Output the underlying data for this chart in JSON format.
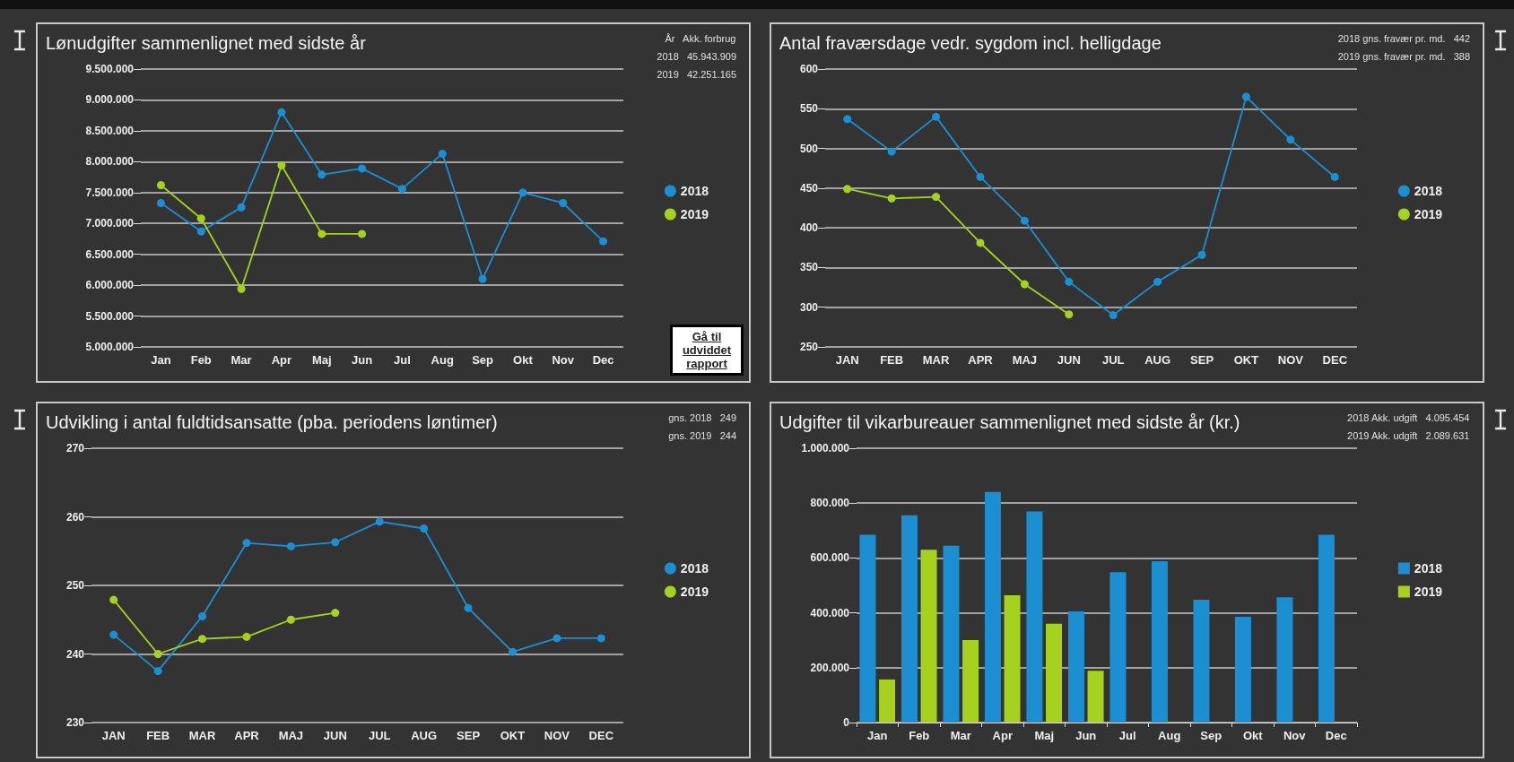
{
  "chart_data": [
    {
      "type": "line",
      "title": "Lønudgifter sammenlignet med sidste år",
      "categories": [
        "Jan",
        "Feb",
        "Mar",
        "Apr",
        "Maj",
        "Jun",
        "Jul",
        "Aug",
        "Sep",
        "Okt",
        "Nov",
        "Dec"
      ],
      "series": [
        {
          "name": "2018",
          "color": "#1b8fd2",
          "values": [
            7330000,
            6870000,
            7260000,
            8800000,
            7790000,
            7890000,
            7560000,
            8130000,
            6100000,
            7500000,
            7330000,
            6710000
          ]
        },
        {
          "name": "2019",
          "color": "#a6d11f",
          "values": [
            7620000,
            7080000,
            5940000,
            7940000,
            6830000,
            6830000,
            null,
            null,
            null,
            null,
            null,
            null
          ]
        }
      ],
      "ylim": [
        5000000,
        9500000
      ],
      "yticks": [
        {
          "value": 5000000,
          "label": "5.000.000"
        },
        {
          "value": 5500000,
          "label": "5.500.000"
        },
        {
          "value": 6000000,
          "label": "6.000.000"
        },
        {
          "value": 6500000,
          "label": "6.500.000"
        },
        {
          "value": 7000000,
          "label": "7.000.000"
        },
        {
          "value": 7500000,
          "label": "7.500.000"
        },
        {
          "value": 8000000,
          "label": "8.000.000"
        },
        {
          "value": 8500000,
          "label": "8.500.000"
        },
        {
          "value": 9000000,
          "label": "9.000.000"
        },
        {
          "value": 9500000,
          "label": "9.500.000"
        }
      ],
      "annotations": [
        "År   Akk. forbrug",
        "2018   45.943.909",
        "2019   42.251.165",
        "Gå til udviddet rapport"
      ],
      "grid": "y",
      "legend": "right",
      "marker": "circle",
      "line_style": "solid"
    },
    {
      "type": "line",
      "title": "Antal fraværsdage vedr. sygdom incl. helligdage",
      "categories": [
        "JAN",
        "FEB",
        "MAR",
        "APR",
        "MAJ",
        "JUN",
        "JUL",
        "AUG",
        "SEP",
        "OKT",
        "NOV",
        "DEC"
      ],
      "series": [
        {
          "name": "2018",
          "color": "#1b8fd2",
          "values": [
            537,
            496,
            540,
            464,
            409,
            332,
            290,
            332,
            366,
            565,
            511,
            464
          ]
        },
        {
          "name": "2019",
          "color": "#a6d11f",
          "values": [
            449,
            437,
            439,
            381,
            329,
            291,
            null,
            null,
            null,
            null,
            null,
            null
          ]
        }
      ],
      "ylim": [
        250,
        600
      ],
      "yticks": [
        250,
        300,
        350,
        400,
        450,
        500,
        550,
        600
      ],
      "annotations": [
        "2018 gns. fravær pr. md.   442",
        "2019 gns. fravær pr. md.   388"
      ],
      "grid": "y",
      "legend": "right",
      "marker": "circle",
      "line_style": "solid"
    },
    {
      "type": "line",
      "title": "Udvikling i antal fuldtidsansatte (pba. periodens løntimer)",
      "categories": [
        "JAN",
        "FEB",
        "MAR",
        "APR",
        "MAJ",
        "JUN",
        "JUL",
        "AUG",
        "SEP",
        "OKT",
        "NOV",
        "DEC"
      ],
      "series": [
        {
          "name": "2018",
          "color": "#1b8fd2",
          "values": [
            242.8,
            237.5,
            245.5,
            256.2,
            255.7,
            256.3,
            259.3,
            258.3,
            246.7,
            240.3,
            242.3,
            242.3
          ]
        },
        {
          "name": "2019",
          "color": "#a6d11f",
          "values": [
            247.9,
            240,
            242.2,
            242.5,
            245,
            246,
            null,
            null,
            null,
            null,
            null,
            null
          ]
        }
      ],
      "ylim": [
        230,
        270
      ],
      "yticks": [
        230,
        240,
        250,
        260,
        270
      ],
      "annotations": [
        "gns. 2018   249",
        "gns. 2019   244"
      ],
      "grid": "y",
      "legend": "right",
      "marker": "circle",
      "line_style": "solid"
    },
    {
      "type": "bar",
      "title": "Udgifter til vikarbureauer sammenlignet med sidste år (kr.)",
      "categories": [
        "Jan",
        "Feb",
        "Mar",
        "Apr",
        "Maj",
        "Jun",
        "Jul",
        "Aug",
        "Sep",
        "Okt",
        "Nov",
        "Dec"
      ],
      "series": [
        {
          "name": "2018",
          "color": "#1b8fd2",
          "values": [
            685000,
            756000,
            645000,
            841000,
            770000,
            405000,
            548000,
            588000,
            448000,
            386000,
            457000,
            685000
          ]
        },
        {
          "name": "2019",
          "color": "#a6d11f",
          "values": [
            157000,
            630000,
            301000,
            464000,
            360000,
            189000,
            null,
            null,
            null,
            null,
            null,
            null
          ]
        }
      ],
      "ylim": [
        0,
        1000000
      ],
      "yticks": [
        0,
        {
          "value": 200000,
          "label": "200.000"
        },
        {
          "value": 400000,
          "label": "400.000"
        },
        {
          "value": 600000,
          "label": "600.000"
        },
        {
          "value": 800000,
          "label": "800.000"
        },
        {
          "value": 1000000,
          "label": "1.000.000"
        }
      ],
      "annotations": [
        "2018 Akk. udgift   4.095.454",
        "2019 Akk. udgift   2.089.631"
      ],
      "grid": "y",
      "legend": "right"
    }
  ]
}
